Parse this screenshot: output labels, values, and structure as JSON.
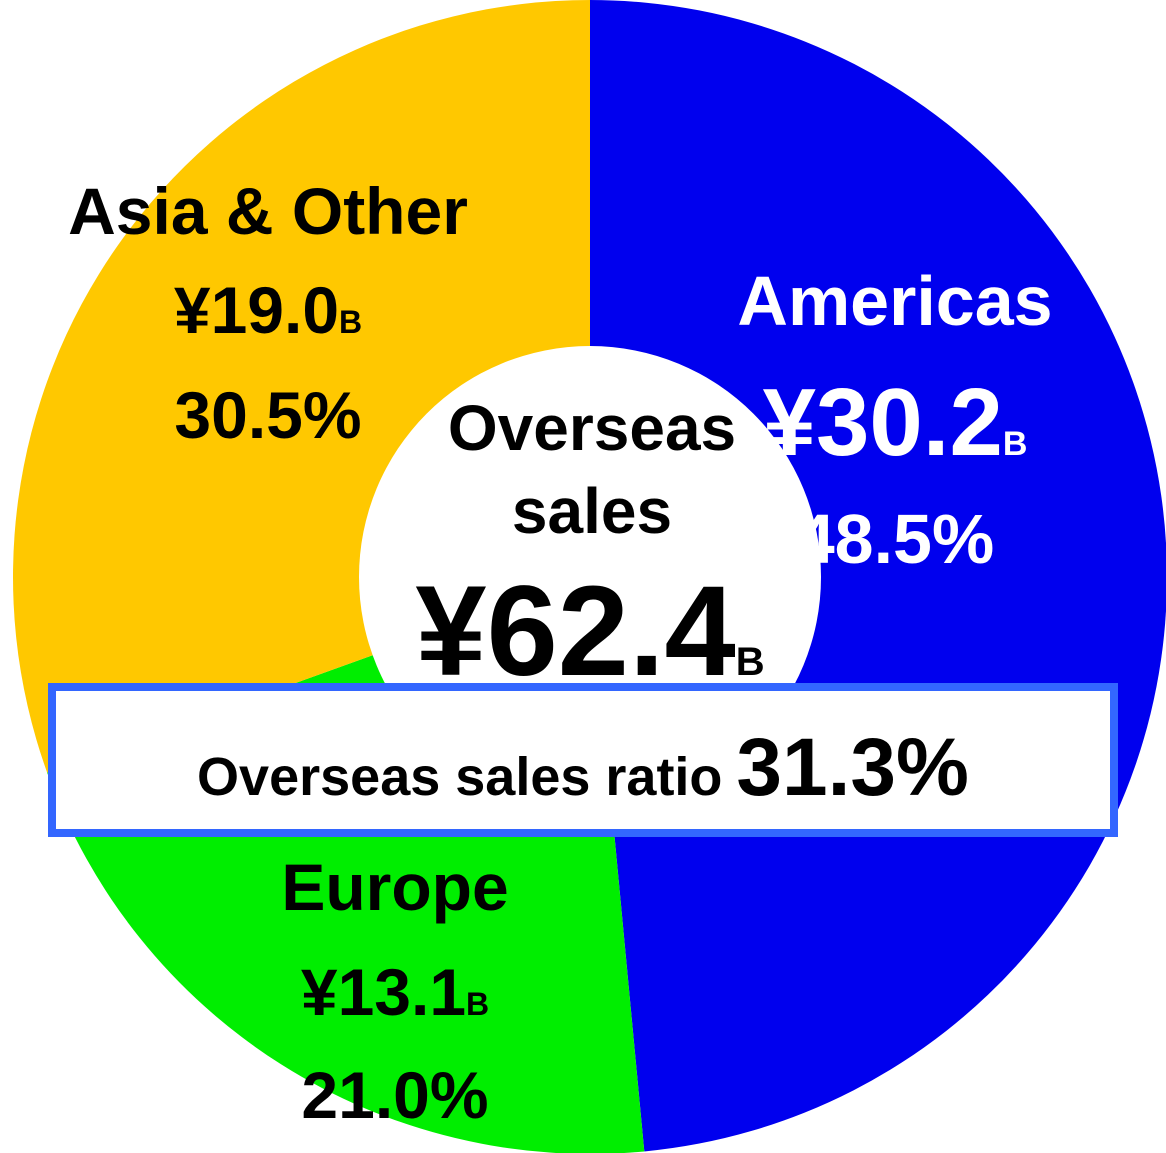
{
  "chart_data": {
    "type": "donut",
    "categories": [
      "Americas",
      "Europe",
      "Asia & Other"
    ],
    "values": [
      48.5,
      21.0,
      30.5
    ],
    "value_labels": [
      "48.5%",
      "21.0%",
      "30.5%"
    ],
    "colors": [
      "#0000ee",
      "#00ee00",
      "#ffc800"
    ],
    "amount_labels": [
      "¥30.2",
      "¥13.1",
      "¥19.0"
    ],
    "amount_unit": "B",
    "center_label": [
      "Overseas",
      "sales"
    ],
    "center_amount": "¥62.4",
    "ratio_label": "Overseas sales ratio",
    "ratio_value": "31.3%"
  }
}
